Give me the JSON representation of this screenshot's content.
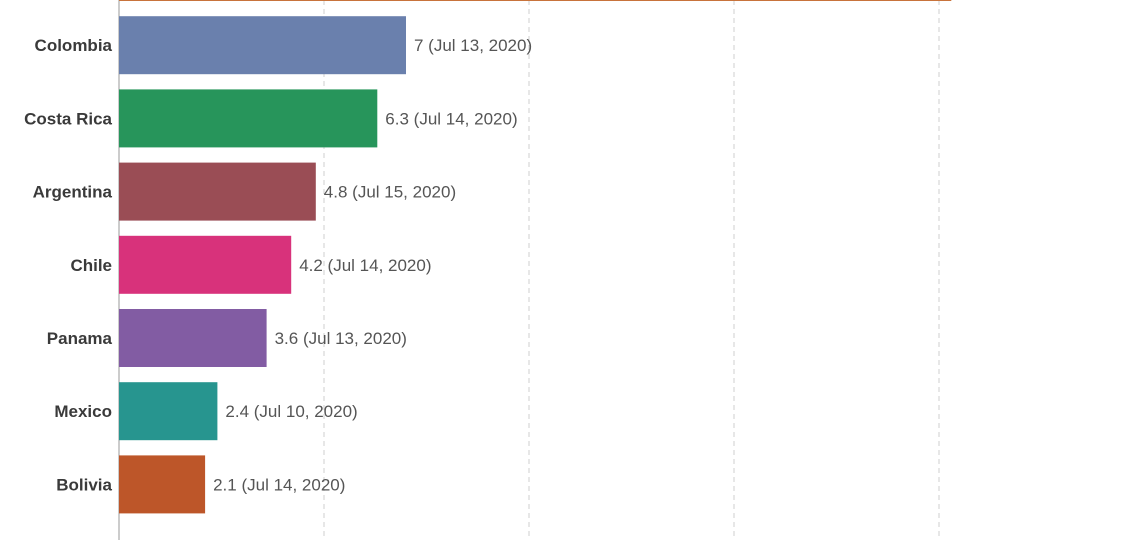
{
  "chart_data": {
    "type": "bar",
    "orientation": "horizontal",
    "categories": [
      "",
      "Colombia",
      "Costa Rica",
      "Argentina",
      "Chile",
      "Panama",
      "Mexico",
      "Bolivia"
    ],
    "values": [
      20.3,
      7,
      6.3,
      4.8,
      4.2,
      3.6,
      2.4,
      2.1
    ],
    "value_labels": [
      "",
      "7 (Jul 13, 2020)",
      "6.3 (Jul 14, 2020)",
      "4.8 (Jul 15, 2020)",
      "4.2 (Jul 14, 2020)",
      "3.6 (Jul 13, 2020)",
      "2.4 (Jul 10, 2020)",
      "2.1 (Jul 14, 2020)"
    ],
    "colors": [
      "#c8733b",
      "#6a80ad",
      "#27955b",
      "#9a4d55",
      "#d8327b",
      "#825ca3",
      "#27958f",
      "#bd5629"
    ],
    "xlim": [
      0,
      25
    ],
    "grid_step": 5,
    "grid": true,
    "title": "",
    "xlabel": "",
    "ylabel": ""
  }
}
